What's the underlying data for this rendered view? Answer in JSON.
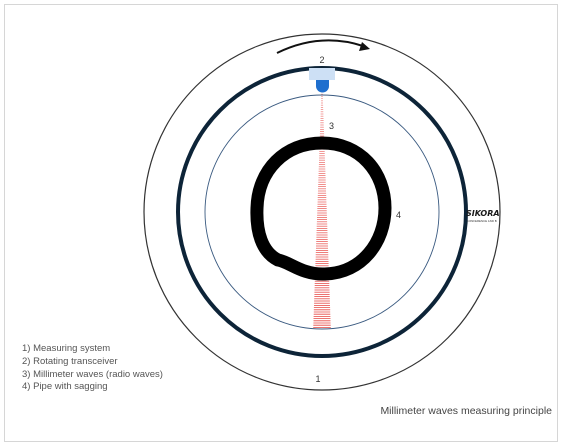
{
  "labels": {
    "outer_ring": "1",
    "transceiver": "2",
    "waves": "3",
    "pipe": "4"
  },
  "brand": {
    "name": "SIKORA",
    "tagline": "CONFERENCE AND B"
  },
  "legend": {
    "items": [
      "1) Measuring system",
      "2) Rotating transceiver",
      "3) Millimeter waves (radio waves)",
      "4) Pipe with sagging"
    ]
  },
  "caption": "Millimeter waves measuring principle",
  "colors": {
    "outer_ring_stroke": "#333333",
    "dark_ring": "#0d2438",
    "inner_ring": "#3a5a80",
    "pipe": "#000000",
    "transceiver_housing": "#cde0f5",
    "transceiver_sensor": "#1f6fce",
    "waves": "#e53935",
    "rotation_arrow": "#111111"
  }
}
